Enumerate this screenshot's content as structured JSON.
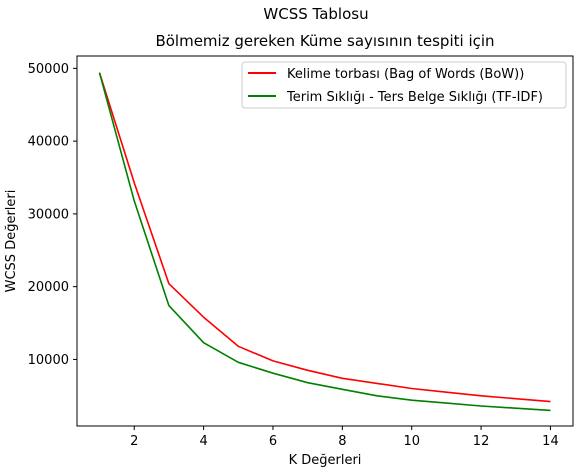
{
  "chart_data": {
    "type": "line",
    "suptitle": "WCSS Tablosu",
    "title": "Bölmemiz gereken Küme sayısının tespiti için",
    "xlabel": "K Değerleri",
    "ylabel": "WCSS Değerleri",
    "xlim": [
      0.35,
      14.65
    ],
    "ylim": [
      850,
      51700
    ],
    "xticks": [
      2,
      4,
      6,
      8,
      10,
      12,
      14
    ],
    "yticks": [
      10000,
      20000,
      30000,
      40000,
      50000
    ],
    "x": [
      1,
      2,
      3,
      4,
      5,
      6,
      7,
      8,
      9,
      10,
      11,
      12,
      13,
      14
    ],
    "series": [
      {
        "name": "Kelime torbası (Bag of Words (BoW))",
        "color": "#ff0000",
        "values": [
          49400,
          34300,
          20400,
          15800,
          11800,
          9800,
          8500,
          7400,
          6700,
          6000,
          5500,
          5000,
          4600,
          4200
        ]
      },
      {
        "name": "Terim Sıklığı - Ters Belge Sıklığı (TF-IDF)",
        "color": "#008000",
        "values": [
          49400,
          31800,
          17400,
          12300,
          9600,
          8100,
          6800,
          5900,
          5000,
          4400,
          4000,
          3600,
          3300,
          3000
        ]
      }
    ],
    "grid": false,
    "legend_position": "top-right"
  }
}
